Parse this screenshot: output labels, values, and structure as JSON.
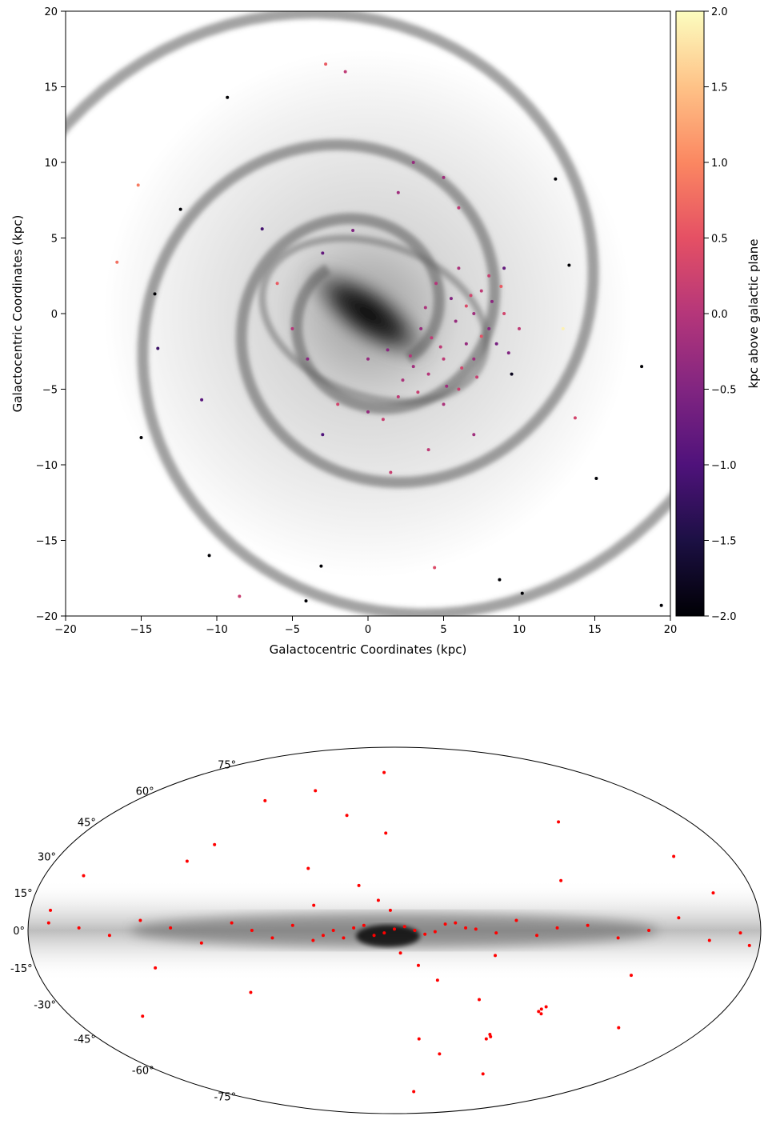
{
  "chart_data": [
    {
      "type": "scatter",
      "xlabel": "Galactocentric Coordinates (kpc)",
      "ylabel": "Galactocentric Coordinates (kpc)",
      "xlim": [
        -20,
        20
      ],
      "ylim": [
        -20,
        20
      ],
      "xticks": [
        {
          "value": -20,
          "label": "−20"
        },
        {
          "value": -15,
          "label": "−15"
        },
        {
          "value": -10,
          "label": "−10"
        },
        {
          "value": -5,
          "label": "−5"
        },
        0,
        5,
        10,
        15,
        20
      ],
      "yticks": [
        {
          "value": -20,
          "label": "−20"
        },
        {
          "value": -15,
          "label": "−15"
        },
        {
          "value": -10,
          "label": "−10"
        },
        {
          "value": -5,
          "label": "−5"
        },
        0,
        5,
        10,
        15,
        20
      ],
      "colormap": "magma",
      "colorbar": {
        "label": "kpc above galactic plane",
        "lim": [
          -2,
          2
        ],
        "ticks": [
          {
            "value": -2,
            "label": "−2.0"
          },
          {
            "value": -1.5,
            "label": "−1.5"
          },
          {
            "value": -1,
            "label": "−1.0"
          },
          {
            "value": -0.5,
            "label": "−0.5"
          },
          {
            "value": 0,
            "label": "0.0"
          },
          {
            "value": 0.5,
            "label": "0.5"
          },
          {
            "value": 1,
            "label": "1.0"
          },
          {
            "value": 1.5,
            "label": "1.5"
          },
          {
            "value": 2,
            "label": "2.0"
          }
        ]
      },
      "x": [
        7,
        7.5,
        8,
        6.5,
        5,
        4,
        5.5,
        6,
        7,
        8.5,
        9,
        3.5,
        4.5,
        5,
        6,
        3,
        2,
        1,
        0,
        -2,
        -3,
        -4,
        -5,
        -6,
        -3,
        -1,
        2,
        3,
        5,
        6,
        9,
        9.5,
        7,
        4,
        1.5,
        0,
        10,
        8,
        6.5,
        7.5,
        4.8,
        5.8,
        6.8,
        3.8,
        2.8,
        8.2,
        7.2,
        6.2,
        5.2,
        4.2,
        9.3,
        8.8,
        3.3,
        2.3,
        1.3,
        -9.3,
        -14.1,
        -15,
        18.1,
        15.1,
        12.4,
        -10.5,
        -4.1,
        -16.6,
        -15.2,
        -2.8,
        -1.5,
        -8.5,
        4.4,
        13.7,
        10.2,
        8.7,
        19.4,
        -3.1,
        12.9,
        -12.4,
        -13.9,
        -11,
        -7,
        13.3
      ],
      "y": [
        0,
        1.5,
        -1,
        -2,
        -3,
        -4,
        1,
        3,
        -3,
        -2,
        0,
        -1,
        2,
        -6,
        -5,
        -3.5,
        -5.5,
        -7,
        -6.5,
        -6,
        -8,
        -3,
        -1,
        2,
        4,
        5.5,
        8,
        10,
        9,
        7,
        3,
        -4,
        -8,
        -9,
        -10.5,
        -3,
        -1,
        2.5,
        0.5,
        -1.5,
        -2.2,
        -0.5,
        1.2,
        0.4,
        -2.8,
        0.8,
        -4.2,
        -3.6,
        -4.8,
        -1.6,
        -2.6,
        1.8,
        -5.2,
        -4.4,
        -2.4,
        14.3,
        1.3,
        -8.2,
        -3.5,
        -10.9,
        8.9,
        -16,
        -19,
        3.4,
        8.5,
        16.5,
        16,
        -18.7,
        -16.8,
        -6.9,
        -18.5,
        -17.6,
        -19.3,
        -16.7,
        -1,
        6.9,
        -2.3,
        -5.7,
        5.6,
        3.2
      ],
      "z": [
        -0.2,
        0.1,
        -0.4,
        -0.3,
        0.1,
        0,
        -0.5,
        -0.1,
        -0.2,
        -0.6,
        0.3,
        -0.3,
        0,
        -0.1,
        0.2,
        -0.2,
        0.1,
        0.2,
        -0.3,
        0.3,
        -1,
        -0.4,
        0,
        0.6,
        -0.8,
        -0.5,
        -0.2,
        -0.3,
        -0.2,
        0.1,
        -0.8,
        -1.8,
        -0.2,
        0.1,
        0.2,
        -0.3,
        0.1,
        0.2,
        0.4,
        0.5,
        0.1,
        -0.3,
        0.3,
        -0.1,
        0,
        -0.4,
        0.2,
        0.3,
        -0.2,
        0.1,
        -0.5,
        0.6,
        0.2,
        -0.1,
        -0.4,
        -2,
        -2,
        -2,
        -2,
        -2,
        -2,
        -2,
        -2,
        0.8,
        0.9,
        0.6,
        0.1,
        0.2,
        0.4,
        0.3,
        -2,
        -2,
        -2,
        -2,
        1.9,
        -2,
        -1.2,
        -0.9,
        -1.1,
        -2
      ]
    },
    {
      "type": "mollweide",
      "xlim": [
        -180,
        180
      ],
      "ylim": [
        -90,
        90
      ],
      "yticks": [
        {
          "value": 75,
          "label": "75°"
        },
        {
          "value": 60,
          "label": "60°"
        },
        {
          "value": 45,
          "label": "45°"
        },
        {
          "value": 30,
          "label": "30°"
        },
        {
          "value": 15,
          "label": "15°"
        },
        {
          "value": 0,
          "label": "0°"
        },
        {
          "value": -15,
          "label": "-15°"
        },
        {
          "value": -30,
          "label": "-30°"
        },
        {
          "value": -45,
          "label": "-45°"
        },
        {
          "value": -60,
          "label": "-60°"
        },
        {
          "value": -75,
          "label": "-75°"
        }
      ],
      "color": "#ff0000",
      "lon": [
        0,
        5,
        -5,
        10,
        -10,
        15,
        -15,
        20,
        -20,
        25,
        -25,
        30,
        -30,
        35,
        -35,
        40,
        -40,
        50,
        -50,
        60,
        -60,
        70,
        -70,
        80,
        -80,
        95,
        -95,
        110,
        -110,
        125,
        -125,
        140,
        -140,
        155,
        -155,
        170,
        -170,
        2,
        -3,
        8,
        -12,
        18,
        -22,
        45,
        -45,
        100,
        -130,
        160,
        30,
        -30,
        60,
        -70,
        120,
        -150,
        10,
        -20,
        90,
        -100,
        140,
        -160,
        40,
        -50,
        75,
        -85,
        5,
        -15,
        110,
        -120,
        170,
        -175,
        -80,
        -81,
        -79,
        -82,
        -57,
        -58,
        -56
      ],
      "lat": [
        0.5,
        -1,
        1.5,
        -2,
        0,
        2,
        -1.5,
        1,
        -0.5,
        -3,
        2.5,
        0,
        3,
        -2,
        1,
        -4,
        0.5,
        2,
        -1,
        -3,
        4,
        0,
        -2,
        3,
        1,
        -5,
        2,
        1,
        -3,
        4,
        0,
        -2,
        5,
        1,
        -4,
        3,
        -1,
        8,
        -9,
        12,
        -14,
        18,
        -20,
        25,
        -28,
        35,
        -40,
        22,
        48,
        -52,
        60,
        -62,
        -15,
        30,
        70,
        -72,
        55,
        45,
        -35,
        15,
        10,
        -10,
        -25,
        20,
        40,
        -45,
        28,
        -18,
        8,
        -6,
        -32,
        -34,
        -33,
        -31,
        -43,
        -44,
        -45
      ]
    }
  ]
}
